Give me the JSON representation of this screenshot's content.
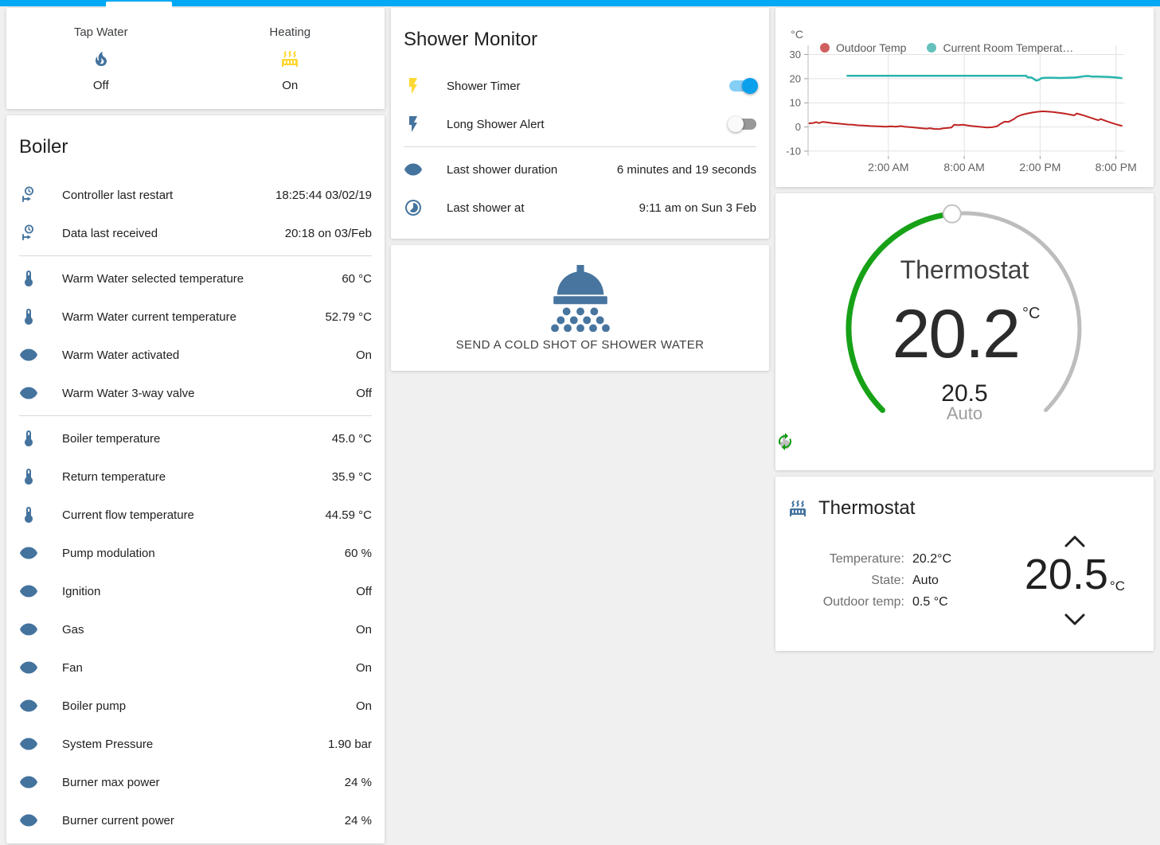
{
  "colors": {
    "accent": "#03a9f4",
    "icon_blue": "#44739e",
    "active_yellow": "#fdd835",
    "dial_green": "#17a117",
    "outdoor_red": "#c02323",
    "room_teal": "#28b5ac"
  },
  "left": {
    "glance": {
      "items": [
        {
          "label": "Tap Water",
          "state": "Off",
          "icon": "fire",
          "icon_color": "#44739e"
        },
        {
          "label": "Heating",
          "state": "On",
          "icon": "radiator",
          "icon_color": "#fdd835"
        }
      ]
    },
    "boiler": {
      "title": "Boiler",
      "sections": [
        [
          {
            "icon": "clock-start",
            "label": "Controller last restart",
            "value": "18:25:44 03/02/19"
          },
          {
            "icon": "clock-start",
            "label": "Data last received",
            "value": "20:18 on 03/Feb"
          }
        ],
        [
          {
            "icon": "thermometer",
            "label": "Warm Water selected temperature",
            "value": "60 °C"
          },
          {
            "icon": "thermometer",
            "label": "Warm Water current temperature",
            "value": "52.79 °C"
          },
          {
            "icon": "eye",
            "label": "Warm Water activated",
            "value": "On"
          },
          {
            "icon": "eye",
            "label": "Warm Water 3-way valve",
            "value": "Off"
          }
        ],
        [
          {
            "icon": "thermometer",
            "label": "Boiler temperature",
            "value": "45.0 °C"
          },
          {
            "icon": "thermometer",
            "label": "Return temperature",
            "value": "35.9 °C"
          },
          {
            "icon": "thermometer",
            "label": "Current flow temperature",
            "value": "44.59 °C"
          },
          {
            "icon": "eye",
            "label": "Pump modulation",
            "value": "60 %"
          },
          {
            "icon": "eye",
            "label": "Ignition",
            "value": "Off"
          },
          {
            "icon": "eye",
            "label": "Gas",
            "value": "On"
          },
          {
            "icon": "eye",
            "label": "Fan",
            "value": "On"
          },
          {
            "icon": "eye",
            "label": "Boiler pump",
            "value": "On"
          },
          {
            "icon": "eye",
            "label": "System Pressure",
            "value": "1.90 bar"
          },
          {
            "icon": "eye",
            "label": "Burner max power",
            "value": "24 %"
          },
          {
            "icon": "eye",
            "label": "Burner current power",
            "value": "24 %"
          }
        ]
      ]
    }
  },
  "middle": {
    "shower_monitor": {
      "title": "Shower Monitor",
      "toggles": [
        {
          "label": "Shower Timer",
          "state": "on",
          "icon": "flash",
          "icon_color": "#fdd835"
        },
        {
          "label": "Long Shower Alert",
          "state": "off",
          "icon": "flash",
          "icon_color": "#44739e"
        }
      ],
      "info": [
        {
          "icon": "eye",
          "label": "Last shower duration",
          "value": "6 minutes and 19 seconds"
        },
        {
          "icon": "timelapse",
          "label": "Last shower at",
          "value": "9:11 am on Sun 3 Feb"
        }
      ]
    },
    "shower_button": {
      "label": "SEND A COLD SHOT OF SHOWER WATER",
      "icon_color": "#47759f"
    }
  },
  "right": {
    "dial": {
      "title": "Thermostat",
      "current_temperature": "20.2",
      "unit": "°C",
      "target": "20.5",
      "mode": "Auto"
    },
    "climate_card": {
      "title": "Thermostat",
      "rows": [
        {
          "label": "Temperature:",
          "value": "20.2°C"
        },
        {
          "label": "State:",
          "value": "Auto"
        },
        {
          "label": "Outdoor temp:",
          "value": "0.5 °C"
        }
      ],
      "target": "20.5",
      "target_unit": "°C"
    }
  },
  "chart_data": {
    "type": "line",
    "title": "",
    "legend_position": "top",
    "grid": true,
    "x_axis": {
      "range_hours": [
        -4.35,
        20.65
      ],
      "ticks": [
        {
          "hour": 2,
          "label": "2:00 AM"
        },
        {
          "hour": 8,
          "label": "8:00 AM"
        },
        {
          "hour": 14,
          "label": "2:00 PM"
        },
        {
          "hour": 20,
          "label": "8:00 PM"
        }
      ]
    },
    "y_axis": {
      "label": "°C",
      "ticks": [
        -10,
        0,
        10,
        20,
        30
      ],
      "range": [
        -12,
        33.8
      ]
    },
    "series": [
      {
        "name": "Outdoor Temp",
        "color": "#c02323",
        "legend_color": "#d0605e",
        "width": 2,
        "points": [
          [
            -4.3,
            1.5
          ],
          [
            -4.0,
            1.6
          ],
          [
            -3.7,
            2.0
          ],
          [
            -3.5,
            1.6
          ],
          [
            -3.2,
            2.1
          ],
          [
            -3.0,
            2.0
          ],
          [
            -2.7,
            1.8
          ],
          [
            -2.4,
            1.6
          ],
          [
            -2.0,
            1.4
          ],
          [
            -1.6,
            1.2
          ],
          [
            -1.2,
            1.0
          ],
          [
            -0.8,
            0.9
          ],
          [
            -0.4,
            0.7
          ],
          [
            0.0,
            0.6
          ],
          [
            0.6,
            0.4
          ],
          [
            1.2,
            0.3
          ],
          [
            1.8,
            0.1
          ],
          [
            2.2,
            0.3
          ],
          [
            2.6,
            0.1
          ],
          [
            3.0,
            0.4
          ],
          [
            3.3,
            0.1
          ],
          [
            3.8,
            -0.1
          ],
          [
            4.2,
            -0.3
          ],
          [
            4.6,
            -0.5
          ],
          [
            5.0,
            -0.7
          ],
          [
            5.3,
            -0.5
          ],
          [
            5.6,
            -0.8
          ],
          [
            6.0,
            -0.9
          ],
          [
            6.3,
            -0.6
          ],
          [
            6.7,
            -0.4
          ],
          [
            7.0,
            -0.2
          ],
          [
            7.2,
            0.9
          ],
          [
            7.5,
            0.8
          ],
          [
            7.9,
            0.9
          ],
          [
            8.3,
            0.6
          ],
          [
            8.6,
            0.4
          ],
          [
            9.0,
            0.2
          ],
          [
            9.4,
            0.0
          ],
          [
            9.8,
            -0.2
          ],
          [
            10.2,
            -0.1
          ],
          [
            10.6,
            0.3
          ],
          [
            10.9,
            1.4
          ],
          [
            11.2,
            2.2
          ],
          [
            11.5,
            2.1
          ],
          [
            11.9,
            3.2
          ],
          [
            12.2,
            4.3
          ],
          [
            12.6,
            5.1
          ],
          [
            13.0,
            5.6
          ],
          [
            13.4,
            6.0
          ],
          [
            13.8,
            6.3
          ],
          [
            14.2,
            6.5
          ],
          [
            14.6,
            6.4
          ],
          [
            15.0,
            6.2
          ],
          [
            15.5,
            5.9
          ],
          [
            16.0,
            5.5
          ],
          [
            16.4,
            5.1
          ],
          [
            16.7,
            4.8
          ],
          [
            16.9,
            5.6
          ],
          [
            17.1,
            5.3
          ],
          [
            17.5,
            4.7
          ],
          [
            17.9,
            4.0
          ],
          [
            18.3,
            3.3
          ],
          [
            18.6,
            2.8
          ],
          [
            18.8,
            3.3
          ],
          [
            19.0,
            2.9
          ],
          [
            19.3,
            2.3
          ],
          [
            19.7,
            1.6
          ],
          [
            20.0,
            1.1
          ],
          [
            20.3,
            0.7
          ],
          [
            20.5,
            0.5
          ]
        ]
      },
      {
        "name": "Current Room Temperat…",
        "color": "#28b5ac",
        "legend_color": "#64c1bc",
        "width": 2.5,
        "points": [
          [
            -1.3,
            21.2
          ],
          [
            5.0,
            21.2
          ],
          [
            12.9,
            21.2
          ],
          [
            13.0,
            20.6
          ],
          [
            13.3,
            20.5
          ],
          [
            13.5,
            19.9
          ],
          [
            13.7,
            19.2
          ],
          [
            13.9,
            19.5
          ],
          [
            14.1,
            20.2
          ],
          [
            14.4,
            20.4
          ],
          [
            15.0,
            20.4
          ],
          [
            15.6,
            20.3
          ],
          [
            16.2,
            20.4
          ],
          [
            16.8,
            20.5
          ],
          [
            17.2,
            20.8
          ],
          [
            17.5,
            21.0
          ],
          [
            17.8,
            21.1
          ],
          [
            18.1,
            20.9
          ],
          [
            18.6,
            20.9
          ],
          [
            19.0,
            20.8
          ],
          [
            19.5,
            20.7
          ],
          [
            20.0,
            20.5
          ],
          [
            20.5,
            20.2
          ]
        ]
      }
    ]
  }
}
